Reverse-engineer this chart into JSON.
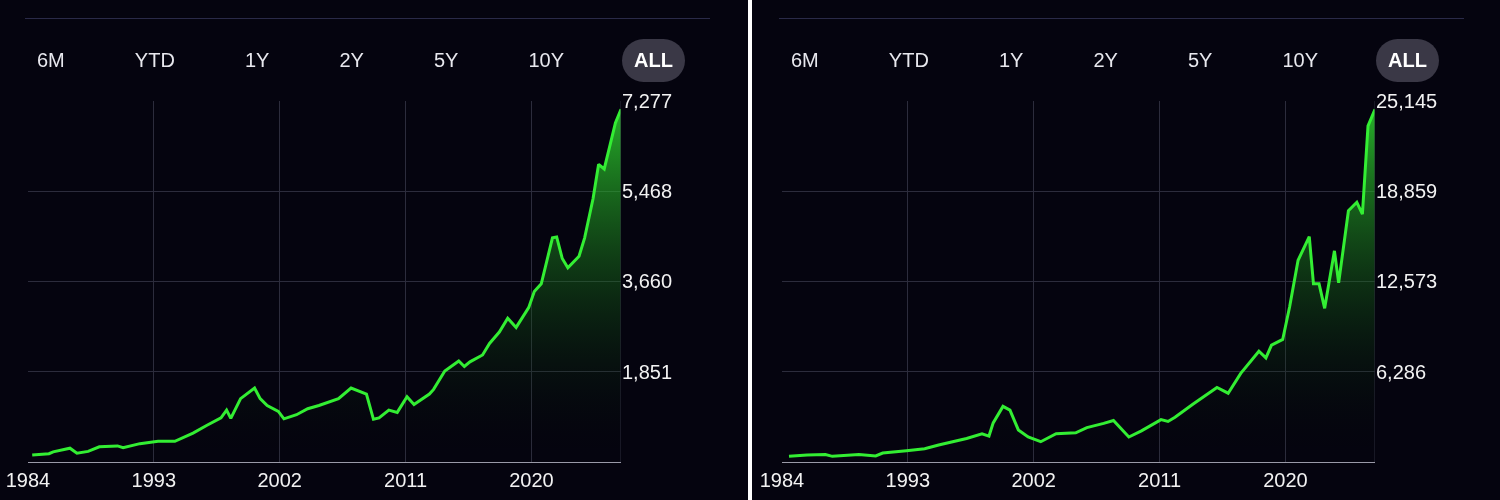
{
  "chart_data": [
    {
      "type": "area",
      "annotations": [
        "6M",
        "YTD",
        "1Y",
        "2Y",
        "5Y",
        "10Y",
        "ALL"
      ],
      "x": [
        1984.3,
        1985.5,
        1985.8,
        1987.0,
        1987.5,
        1988.3,
        1989.1,
        1990.4,
        1990.8,
        1992.0,
        1993.3,
        1994.5,
        1995.8,
        1996.8,
        1997.8,
        1998.2,
        1998.5,
        1999.2,
        2000.2,
        2000.6,
        2001.1,
        2001.9,
        2002.3,
        2003.2,
        2004.0,
        2004.8,
        2006.2,
        2007.1,
        2008.2,
        2008.7,
        2009.1,
        2009.8,
        2010.4,
        2011.1,
        2011.6,
        2012.7,
        2013.0,
        2013.8,
        2014.8,
        2015.2,
        2015.6,
        2016.5,
        2017.0,
        2017.7,
        2018.3,
        2018.9,
        2019.8,
        2020.2,
        2020.7,
        2021.5,
        2021.8,
        2022.2,
        2022.6,
        2023.4,
        2023.8,
        2024.4,
        2024.8,
        2025.2,
        2026.0,
        2026.4
      ],
      "series": [
        {
          "color": "#33ee33",
          "values": [
            180,
            208,
            245,
            318,
            217,
            254,
            346,
            364,
            327,
            410,
            456,
            456,
            622,
            778,
            926,
            1082,
            917,
            1312,
            1524,
            1312,
            1174,
            1055,
            907,
            990,
            1110,
            1174,
            1312,
            1524,
            1404,
            898,
            926,
            1082,
            1036,
            1349,
            1193,
            1404,
            1497,
            1865,
            2067,
            1957,
            2049,
            2187,
            2417,
            2647,
            2923,
            2739,
            3135,
            3458,
            3614,
            4535,
            4553,
            4120,
            3936,
            4166,
            4535,
            5317,
            6008,
            5915,
            6836,
            7112
          ]
        }
      ],
      "xlim": [
        1984,
        2026.4
      ],
      "xticks": [
        1984,
        1993,
        2002,
        2011,
        2020
      ],
      "ylim": [
        42,
        7277
      ],
      "yticks": [
        {
          "value": 1851,
          "label": "1,851"
        },
        {
          "value": 3660,
          "label": "3,660"
        },
        {
          "value": 5468,
          "label": "5,468"
        },
        {
          "value": 7277,
          "label": "7,277"
        }
      ],
      "grid": true
    },
    {
      "type": "area",
      "annotations": [
        "6M",
        "YTD",
        "1Y",
        "2Y",
        "5Y",
        "10Y",
        "ALL"
      ],
      "x": [
        1984.5,
        1985.8,
        1987.1,
        1987.6,
        1989.5,
        1990.7,
        1991.2,
        1992.9,
        1994.2,
        1995.2,
        1996.2,
        1997.2,
        1998.3,
        1998.8,
        1999.1,
        1999.8,
        2000.3,
        2000.9,
        2001.6,
        2002.5,
        2003.6,
        2005.0,
        2005.8,
        2007.0,
        2007.7,
        2008.8,
        2009.7,
        2011.1,
        2011.6,
        2012.1,
        2013.4,
        2015.1,
        2015.9,
        2016.8,
        2018.1,
        2018.6,
        2019.0,
        2019.8,
        2020.3,
        2020.9,
        2021.7,
        2022.0,
        2022.4,
        2022.8,
        2023.5,
        2023.8,
        2024.5,
        2025.1,
        2025.5,
        2025.9,
        2026.4
      ],
      "series": [
        {
          "color": "#33ee33",
          "values": [
            394,
            492,
            525,
            394,
            525,
            427,
            624,
            788,
            919,
            1182,
            1412,
            1642,
            1970,
            1806,
            2725,
            3874,
            3611,
            2232,
            1740,
            1412,
            1970,
            2035,
            2397,
            2692,
            2889,
            1740,
            2167,
            2955,
            2823,
            3119,
            4038,
            5187,
            4793,
            6172,
            7715,
            7255,
            8142,
            8536,
            10834,
            14051,
            15693,
            12410,
            12410,
            10703,
            14708,
            12475,
            17498,
            18089,
            17268,
            23408,
            24557
          ]
        }
      ],
      "xlim": [
        1984,
        2026.4
      ],
      "xticks": [
        1984,
        1993,
        2002,
        2011,
        2020
      ],
      "ylim": [
        0,
        25145
      ],
      "yticks": [
        {
          "value": 6286,
          "label": "6,286"
        },
        {
          "value": 12573,
          "label": "12,573"
        },
        {
          "value": 18859,
          "label": "18,859"
        },
        {
          "value": 25145,
          "label": "25,145"
        }
      ],
      "grid": true
    }
  ]
}
